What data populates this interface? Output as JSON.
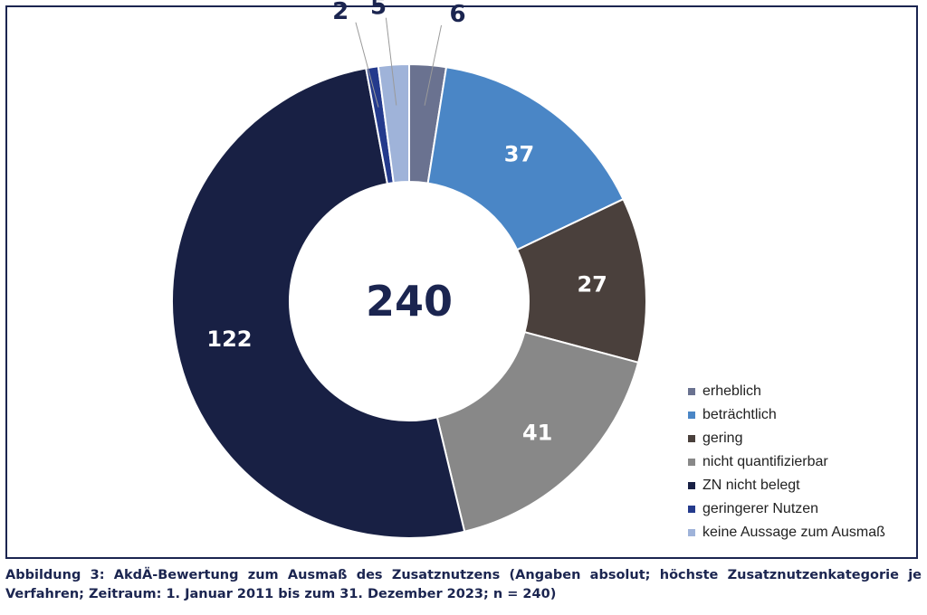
{
  "chart_data": {
    "type": "pie",
    "variant": "donut",
    "center_label": "240",
    "slices": [
      {
        "label": "erheblich",
        "value": 6,
        "color": "#6a7290",
        "label_position": "outside"
      },
      {
        "label": "beträchtlich",
        "value": 37,
        "color": "#4a86c6",
        "label_position": "inside"
      },
      {
        "label": "gering",
        "value": 27,
        "color": "#4a403c",
        "label_position": "inside"
      },
      {
        "label": "nicht quantifizierbar",
        "value": 41,
        "color": "#888888",
        "label_position": "inside"
      },
      {
        "label": "ZN nicht belegt",
        "value": 122,
        "color": "#182044",
        "label_position": "inside"
      },
      {
        "label": "geringerer Nutzen",
        "value": 2,
        "color": "#243a8c",
        "label_position": "outside"
      },
      {
        "label": "keine Aussage zum Ausmaß",
        "value": 5,
        "color": "#9fb3d9",
        "label_position": "outside"
      }
    ],
    "legend_placement": "bottom-right"
  },
  "caption": "Abbildung 3: AkdÄ-Bewertung zum Ausmaß des Zusatznutzens (Angaben absolut; höchste Zusatznutzenkategorie je Verfahren; Zeitraum: 1. Januar 2011 bis zum 31. Dezember 2023; n = 240)"
}
